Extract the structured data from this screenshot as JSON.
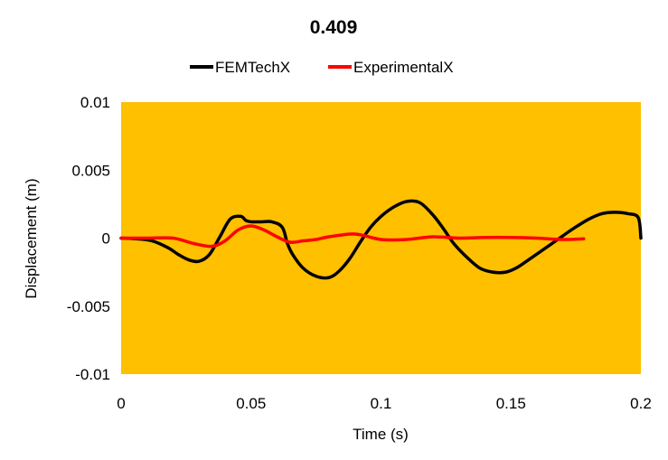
{
  "chart_data": {
    "type": "line",
    "title": "0.409",
    "xlabel": "Time (s)",
    "ylabel": "Displacement (m)",
    "xlim": [
      0,
      0.2
    ],
    "ylim": [
      -0.01,
      0.01
    ],
    "xticks": [
      0,
      0.05,
      0.1,
      0.15,
      0.2
    ],
    "xtick_labels": [
      "0",
      "0.05",
      "0.1",
      "0.15",
      "0.2"
    ],
    "yticks": [
      0.01,
      0.005,
      0,
      -0.005,
      -0.01
    ],
    "ytick_labels": [
      "0.01",
      "0.005",
      "0",
      "-0.005",
      "-0.01"
    ],
    "grid": false,
    "legend_position": "top-center",
    "plot_background": "#FFC000",
    "series": [
      {
        "name": "FEMTechX",
        "color": "#000000",
        "x": [
          0,
          0.006,
          0.012,
          0.018,
          0.022,
          0.026,
          0.03,
          0.034,
          0.038,
          0.042,
          0.046,
          0.048,
          0.05,
          0.054,
          0.058,
          0.062,
          0.064,
          0.066,
          0.07,
          0.075,
          0.08,
          0.084,
          0.088,
          0.092,
          0.096,
          0.1,
          0.105,
          0.11,
          0.115,
          0.12,
          0.124,
          0.128,
          0.133,
          0.138,
          0.143,
          0.148,
          0.152,
          0.156,
          0.162,
          0.168,
          0.174,
          0.18,
          0.185,
          0.19,
          0.195,
          0.199,
          0.2
        ],
        "y": [
          0,
          -5e-05,
          -0.0002,
          -0.0007,
          -0.0012,
          -0.0016,
          -0.0017,
          -0.0012,
          0.0001,
          0.0014,
          0.0016,
          0.0013,
          0.0012,
          0.0012,
          0.0012,
          0.0008,
          -0.0004,
          -0.0012,
          -0.0022,
          -0.0028,
          -0.0029,
          -0.0024,
          -0.0015,
          -0.0003,
          0.0008,
          0.0016,
          0.0023,
          0.0027,
          0.0026,
          0.0017,
          0.0007,
          -0.0004,
          -0.0014,
          -0.0022,
          -0.0025,
          -0.0025,
          -0.0022,
          -0.0017,
          -0.0009,
          -0.0001,
          0.0007,
          0.0014,
          0.0018,
          0.0019,
          0.0018,
          0.0015,
          0.0
        ]
      },
      {
        "name": "ExperimentalX",
        "color": "#FF0000",
        "x": [
          0,
          0.01,
          0.02,
          0.028,
          0.035,
          0.04,
          0.045,
          0.05,
          0.055,
          0.06,
          0.065,
          0.07,
          0.075,
          0.08,
          0.09,
          0.1,
          0.11,
          0.12,
          0.13,
          0.14,
          0.15,
          0.16,
          0.17,
          0.178
        ],
        "y": [
          0,
          0,
          0,
          -0.0004,
          -0.0006,
          -0.0002,
          0.0006,
          0.0009,
          0.0006,
          0.0001,
          -0.0003,
          -0.0002,
          -0.0001,
          0.0001,
          0.0003,
          -0.0001,
          -0.0001,
          0.0001,
          0,
          5e-05,
          5e-05,
          0,
          -0.0001,
          -5e-05
        ]
      }
    ]
  }
}
